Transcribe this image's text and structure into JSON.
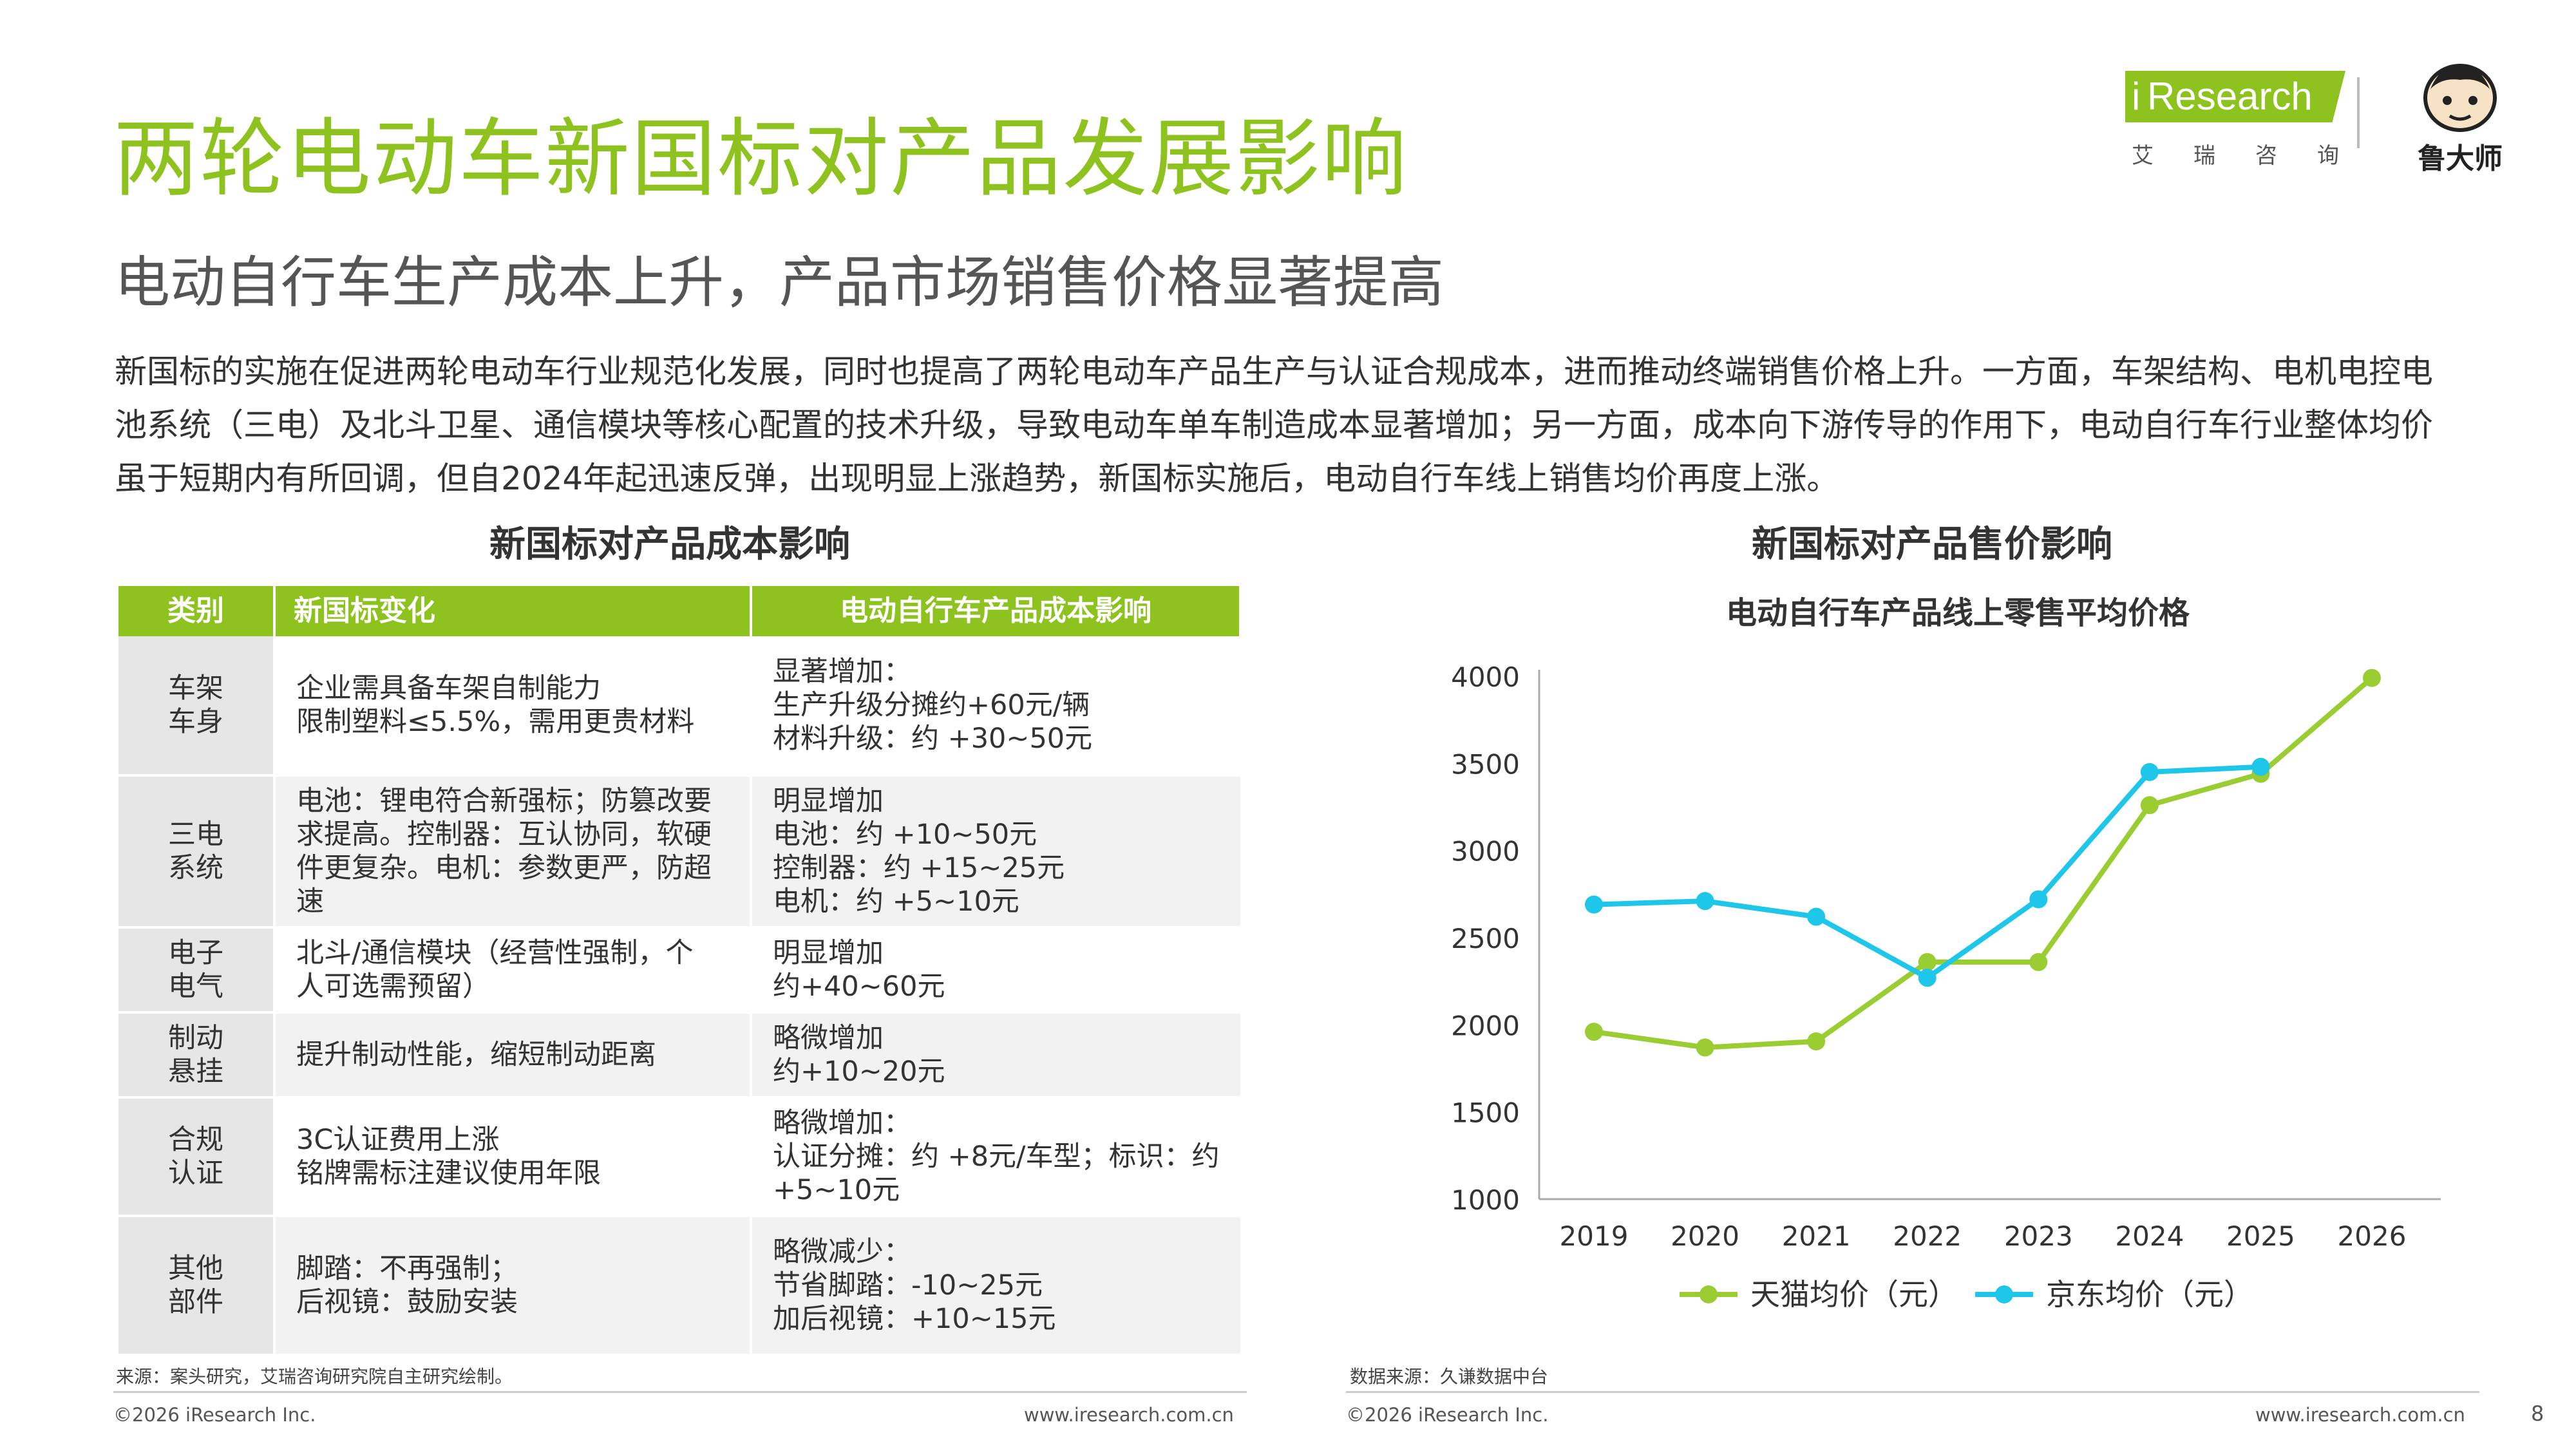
{
  "header": {
    "title": "两轮电动车新国标对产品发展影响",
    "subtitle": "电动自行车生产成本上升，产品市场销售价格显著提高",
    "logo_ires_i": "i",
    "logo_ires_text": "Research",
    "logo_ires_cn": "艾瑞咨询",
    "logo_luds": "鲁大师"
  },
  "intro": "新国标的实施在促进两轮电动车行业规范化发展，同时也提高了两轮电动车产品生产与认证合规成本，进而推动终端销售价格上升。一方面，车架结构、电机电控电池系统（三电）及北斗卫星、通信模块等核心配置的技术升级，导致电动车单车制造成本显著增加；另一方面，成本向下游传导的作用下，电动自行车行业整体均价虽于短期内有所回调，但自2024年起迅速反弹，出现明显上涨趋势，新国标实施后，电动自行车线上销售均价再度上涨。",
  "left": {
    "section_title": "新国标对产品成本影响",
    "columns": [
      "类别",
      "新国标变化",
      "电动自行车产品成本影响"
    ],
    "rows": [
      {
        "cat": [
          "车架",
          "车身"
        ],
        "change": [
          "企业需具备车架自制能力",
          "限制塑料≤5.5%，需用更贵材料"
        ],
        "impact": [
          "显著增加：",
          "生产升级分摊约+60元/辆",
          "材料升级：约 +30~50元"
        ]
      },
      {
        "cat": [
          "三电",
          "系统"
        ],
        "change": [
          "电池：锂电符合新强标；防篡改要",
          "求提高。控制器：互认协同，软硬",
          "件更复杂。电机：参数更严，防超",
          "速"
        ],
        "impact": [
          "明显增加",
          "电池：约 +10~50元",
          "控制器：约 +15~25元",
          "电机：约 +5~10元"
        ]
      },
      {
        "cat": [
          "电子",
          "电气"
        ],
        "change": [
          "北斗/通信模块（经营性强制，个",
          "人可选需预留）"
        ],
        "impact": [
          "明显增加",
          "约+40~60元"
        ]
      },
      {
        "cat": [
          "制动",
          "悬挂"
        ],
        "change": [
          "提升制动性能，缩短制动距离"
        ],
        "impact": [
          "略微增加",
          "约+10~20元"
        ]
      },
      {
        "cat": [
          "合规",
          "认证"
        ],
        "change": [
          "3C认证费用上涨",
          "铭牌需标注建议使用年限"
        ],
        "impact": [
          "略微增加：",
          "认证分摊：约 +8元/车型；标识：约",
          "+5~10元"
        ]
      },
      {
        "cat": [
          "其他",
          "部件"
        ],
        "change": [
          "脚踏：不再强制；",
          "后视镜：鼓励安装"
        ],
        "impact": [
          "略微减少：",
          "节省脚踏：-10~25元",
          "加后视镜：+10~15元"
        ]
      }
    ],
    "source": "来源：案头研究，艾瑞咨询研究院自主研究绘制。",
    "footer_copyright": "©2026 iResearch Inc.",
    "footer_url": "www.iresearch.com.cn"
  },
  "right": {
    "section_title": "新国标对产品售价影响",
    "source": "数据来源：久谦数据中台",
    "footer_copyright": "©2026 iResearch Inc.",
    "footer_url": "www.iresearch.com.cn"
  },
  "page_number": "8",
  "chart_data": {
    "type": "line",
    "title": "电动自行车产品线上零售平均价格",
    "x": [
      "2019",
      "2020",
      "2021",
      "2022",
      "2023",
      "2024",
      "2025",
      "2026"
    ],
    "series": [
      {
        "name": "天猫均价（元）",
        "color": "#9acd32",
        "values": [
          1960,
          1870,
          1905,
          2360,
          2360,
          3260,
          3440,
          3990
        ]
      },
      {
        "name": "京东均价（元）",
        "color": "#1ec6ea",
        "values": [
          2690,
          2710,
          2620,
          2270,
          2720,
          3450,
          3480,
          null
        ]
      }
    ],
    "yticks": [
      "1000",
      "1500",
      "2000",
      "2500",
      "3000",
      "3500",
      "4000"
    ],
    "ylim": [
      1000,
      4000
    ],
    "grid": false,
    "legend_position": "bottom"
  }
}
